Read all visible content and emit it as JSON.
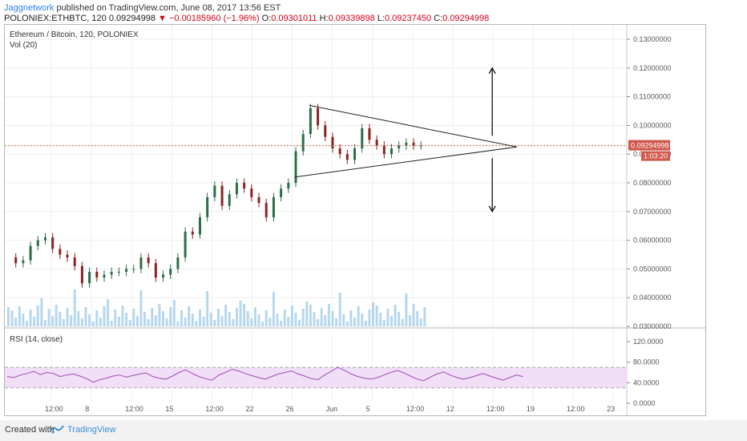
{
  "header": {
    "author": "Jaggnetwork",
    "published_text": "published on TradingView.com, June 08, 2017 13:56 EST",
    "symbol_line": "POLONIEX:ETHBTC, 120",
    "last_price": "0.09294998",
    "change": "−0.00185960 (−1.96%)",
    "o": "0.09301011",
    "h": "0.09339898",
    "l": "0.09237450",
    "c": "0.09294998"
  },
  "chart_data": {
    "type": "candlestick",
    "title": "Ethereum / Bitcoin, 120, POLONIEX",
    "volume_label": "Vol (20)",
    "price_axis": {
      "ticks": [
        "0.13000000",
        "0.12000000",
        "0.11000000",
        "0.10000000",
        "0.09000000",
        "0.08000000",
        "0.07000000",
        "0.06000000",
        "0.05000000",
        "0.04000000",
        "0.03000000"
      ],
      "range": [
        0.03,
        0.13
      ]
    },
    "last_price_label": "0.09294998",
    "countdown_label": "1:03:20",
    "time_axis": {
      "ticks": [
        "12:00",
        "8",
        "12:00",
        "15",
        "12:00",
        "22",
        "26",
        "Jun",
        "5",
        "12:00",
        "12",
        "12:00",
        "19",
        "12:00",
        "23"
      ]
    },
    "price_series": [
      {
        "t": 0,
        "close": 0.054
      },
      {
        "t": 3,
        "close": 0.052
      },
      {
        "t": 6,
        "close": 0.053
      },
      {
        "t": 9,
        "close": 0.058
      },
      {
        "t": 12,
        "close": 0.06
      },
      {
        "t": 15,
        "close": 0.061
      },
      {
        "t": 18,
        "close": 0.057
      },
      {
        "t": 21,
        "close": 0.055
      },
      {
        "t": 24,
        "close": 0.054
      },
      {
        "t": 27,
        "close": 0.051
      },
      {
        "t": 30,
        "close": 0.045
      },
      {
        "t": 33,
        "close": 0.049
      },
      {
        "t": 36,
        "close": 0.047
      },
      {
        "t": 39,
        "close": 0.048
      },
      {
        "t": 42,
        "close": 0.049
      },
      {
        "t": 45,
        "close": 0.049
      },
      {
        "t": 48,
        "close": 0.05
      },
      {
        "t": 51,
        "close": 0.05
      },
      {
        "t": 54,
        "close": 0.054
      },
      {
        "t": 57,
        "close": 0.052
      },
      {
        "t": 60,
        "close": 0.047
      },
      {
        "t": 63,
        "close": 0.048
      },
      {
        "t": 66,
        "close": 0.05
      },
      {
        "t": 69,
        "close": 0.054
      },
      {
        "t": 72,
        "close": 0.063
      },
      {
        "t": 75,
        "close": 0.062
      },
      {
        "t": 78,
        "close": 0.068
      },
      {
        "t": 81,
        "close": 0.075
      },
      {
        "t": 84,
        "close": 0.079
      },
      {
        "t": 87,
        "close": 0.072
      },
      {
        "t": 90,
        "close": 0.076
      },
      {
        "t": 93,
        "close": 0.08
      },
      {
        "t": 96,
        "close": 0.078
      },
      {
        "t": 99,
        "close": 0.075
      },
      {
        "t": 102,
        "close": 0.073
      },
      {
        "t": 105,
        "close": 0.068
      },
      {
        "t": 108,
        "close": 0.075
      },
      {
        "t": 111,
        "close": 0.078
      },
      {
        "t": 114,
        "close": 0.08
      },
      {
        "t": 117,
        "close": 0.091
      },
      {
        "t": 120,
        "close": 0.097
      },
      {
        "t": 123,
        "close": 0.106
      },
      {
        "t": 126,
        "close": 0.1
      },
      {
        "t": 129,
        "close": 0.096
      },
      {
        "t": 132,
        "close": 0.092
      },
      {
        "t": 135,
        "close": 0.09
      },
      {
        "t": 138,
        "close": 0.088
      },
      {
        "t": 141,
        "close": 0.092
      },
      {
        "t": 144,
        "close": 0.099
      },
      {
        "t": 147,
        "close": 0.095
      },
      {
        "t": 150,
        "close": 0.093
      },
      {
        "t": 153,
        "close": 0.09
      },
      {
        "t": 156,
        "close": 0.092
      },
      {
        "t": 159,
        "close": 0.093
      },
      {
        "t": 162,
        "close": 0.094
      },
      {
        "t": 165,
        "close": 0.093
      },
      {
        "t": 168,
        "close": 0.093
      }
    ],
    "annotations": {
      "triangle_apex_price": 0.0925,
      "arrow_up_target": 0.12,
      "arrow_down_target": 0.07
    },
    "rsi": {
      "label": "RSI (14, close)",
      "ticks": [
        "120.0000",
        "80.0000",
        "40.0000",
        "0.0000"
      ],
      "range": [
        0,
        120
      ],
      "upper_band": 70,
      "lower_band": 30,
      "values": [
        52,
        50,
        55,
        58,
        62,
        56,
        60,
        58,
        52,
        55,
        57,
        53,
        48,
        41,
        46,
        49,
        53,
        55,
        51,
        54,
        57,
        59,
        52,
        49,
        47,
        53,
        60,
        65,
        58,
        52,
        48,
        45,
        55,
        60,
        66,
        63,
        58,
        54,
        50,
        47,
        52,
        57,
        60,
        63,
        57,
        53,
        48,
        46,
        55,
        62,
        70,
        64,
        57,
        52,
        49,
        47,
        50,
        55,
        60,
        64,
        59,
        53,
        47,
        44,
        51,
        57,
        61,
        55,
        50,
        47,
        50,
        54,
        58,
        53,
        49,
        45,
        50,
        55,
        52
      ]
    }
  },
  "footer": {
    "created_with": "Created with",
    "brand": "TradingView"
  },
  "colors": {
    "up_candle": "#2c6e49",
    "down_candle": "#8b2323",
    "volume": "#9ec9e8",
    "rsi_line": "#9c4fb0",
    "rsi_band": "#f1def7",
    "last_price_tag": "#d0584d"
  }
}
